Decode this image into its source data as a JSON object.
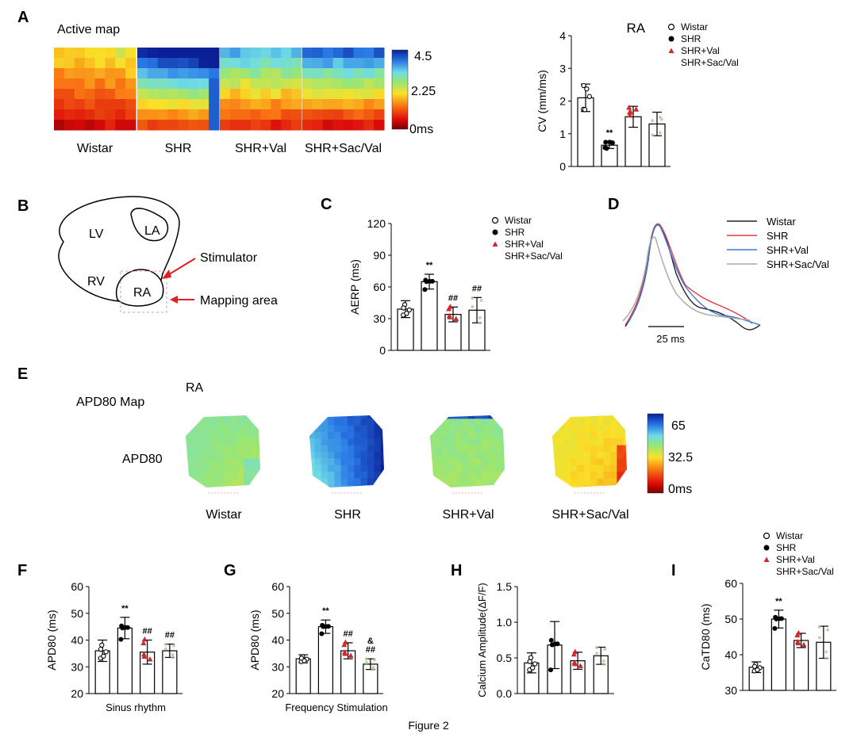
{
  "panel_letters": [
    "A",
    "B",
    "C",
    "D",
    "E",
    "F",
    "G",
    "H",
    "I"
  ],
  "caption": "Figure 2",
  "legend_labels": [
    "Wistar",
    "SHR",
    "SHR+Val",
    "SHR+Sac/Val"
  ],
  "colors": {
    "wistar": "#000000",
    "shr": "#000000",
    "val": "#cc2a2a",
    "sacval": "#8f8f8f",
    "trace_wistar": "#222222",
    "trace_shr": "#e03c3c",
    "trace_val": "#3a78d8",
    "trace_sacval": "#a8a8a8"
  },
  "panel_a": {
    "title": "Active map",
    "groups": [
      "Wistar",
      "SHR",
      "SHR+Val",
      "SHR+Sac/Val"
    ],
    "scale_labels": [
      "4.5",
      "2.25",
      "0ms"
    ]
  },
  "panel_b": {
    "labels": {
      "lv": "LV",
      "la": "LA",
      "rv": "RV",
      "ra": "RA",
      "stimulator": "Stimulator",
      "mapping": "Mapping area"
    }
  },
  "panel_d": {
    "scale_label": "25 ms"
  },
  "panel_e": {
    "title": "APD80 Map",
    "subtitle": "RA",
    "row_label": "APD80",
    "groups": [
      "Wistar",
      "SHR",
      "SHR+Val",
      "SHR+Sac/Val"
    ],
    "scale_labels": [
      "65",
      "32.5",
      "0ms"
    ]
  },
  "chart_data": [
    {
      "id": "A-right",
      "type": "bar",
      "title": "RA",
      "ylabel": "CV (mm/ms)",
      "xlabel": "",
      "categories": [
        "Wistar",
        "SHR",
        "SHR+Val",
        "SHR+Sac/Val"
      ],
      "values": [
        2.1,
        0.65,
        1.52,
        1.3
      ],
      "errors": [
        0.42,
        0.1,
        0.32,
        0.36
      ],
      "ylim": [
        0,
        4
      ],
      "yticks": [
        0,
        1,
        2,
        3,
        4
      ],
      "annotations": [
        "",
        "**",
        "",
        ""
      ],
      "legend": "top-right"
    },
    {
      "id": "C",
      "type": "bar",
      "title": "",
      "ylabel": "AERP (ms)",
      "xlabel": "",
      "categories": [
        "Wistar",
        "SHR",
        "SHR+Val",
        "SHR+Sac/Val"
      ],
      "values": [
        39,
        65,
        34,
        38
      ],
      "errors": [
        8,
        7,
        7,
        12
      ],
      "ylim": [
        0,
        120
      ],
      "yticks": [
        0,
        30,
        60,
        90,
        120
      ],
      "annotations": [
        "",
        "**",
        "##",
        "##"
      ],
      "legend": "top-right"
    },
    {
      "id": "F",
      "type": "bar",
      "title": "",
      "ylabel": "APD80 (ms)",
      "xlabel": "Sinus rhythm",
      "categories": [
        "Wistar",
        "SHR",
        "SHR+Val",
        "SHR+Sac/Val"
      ],
      "values": [
        36,
        44.5,
        35.5,
        36
      ],
      "errors": [
        4,
        4,
        4.5,
        2.5
      ],
      "ylim": [
        20,
        60
      ],
      "yticks": [
        20,
        30,
        40,
        50,
        60
      ],
      "annotations": [
        "",
        "**",
        "##",
        "##"
      ]
    },
    {
      "id": "G",
      "type": "bar",
      "title": "",
      "ylabel": "APD80 (ms)",
      "xlabel": "Frequency Stimulation",
      "categories": [
        "Wistar",
        "SHR",
        "SHR+Val",
        "SHR+Sac/Val"
      ],
      "values": [
        33,
        45,
        36,
        31
      ],
      "errors": [
        1.5,
        2.5,
        3,
        2
      ],
      "ylim": [
        20,
        60
      ],
      "yticks": [
        20,
        30,
        40,
        50,
        60
      ],
      "annotations": [
        "",
        "**",
        "##",
        "&\n##"
      ]
    },
    {
      "id": "H",
      "type": "bar",
      "title": "",
      "ylabel": "Calcium Amplitude(ΔF/F)",
      "xlabel": "",
      "categories": [
        "Wistar",
        "SHR",
        "SHR+Val",
        "SHR+Sac/Val"
      ],
      "values": [
        0.43,
        0.68,
        0.46,
        0.53
      ],
      "errors": [
        0.14,
        0.33,
        0.12,
        0.12
      ],
      "ylim": [
        0,
        1.5
      ],
      "yticks": [
        "0.0",
        "0.5",
        "1.0",
        "1.5"
      ],
      "annotations": [
        "",
        "",
        "",
        ""
      ]
    },
    {
      "id": "I",
      "type": "bar",
      "title": "",
      "ylabel": "CaTD80 (ms)",
      "xlabel": "",
      "categories": [
        "Wistar",
        "SHR",
        "SHR+Val",
        "SHR+Sac/Val"
      ],
      "values": [
        36.5,
        50,
        44,
        43.5
      ],
      "errors": [
        1.5,
        2.5,
        2,
        4.5
      ],
      "ylim": [
        30,
        60
      ],
      "yticks": [
        30,
        40,
        50,
        60
      ],
      "annotations": [
        "",
        "**",
        "",
        ""
      ],
      "legend": "top-right"
    }
  ]
}
